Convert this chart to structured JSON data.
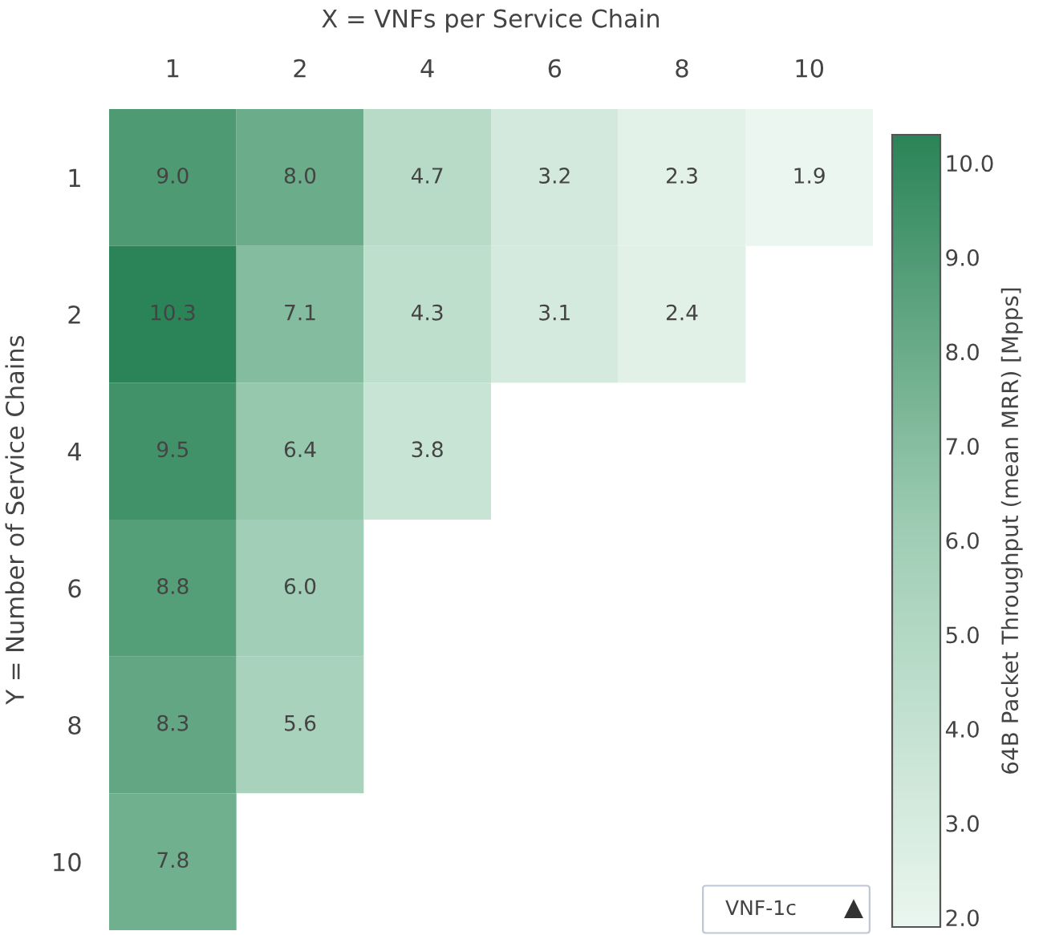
{
  "chart_data": {
    "type": "heatmap",
    "xlabel": "X = VNFs per Service Chain",
    "ylabel": "Y = Number of Service Chains",
    "clabel": "64B Packet Throughput (mean MRR) [Mpps]",
    "categories": [
      "1",
      "2",
      "4",
      "6",
      "8",
      "10"
    ],
    "y_categories": [
      "1",
      "2",
      "4",
      "6",
      "8",
      "10"
    ],
    "cells": [
      [
        9.0,
        8.0,
        4.7,
        3.2,
        2.3,
        1.9
      ],
      [
        10.3,
        7.1,
        4.3,
        3.1,
        2.4,
        null
      ],
      [
        9.5,
        6.4,
        3.8,
        null,
        null,
        null
      ],
      [
        8.8,
        6.0,
        null,
        null,
        null,
        null
      ],
      [
        8.3,
        5.6,
        null,
        null,
        null,
        null
      ],
      [
        7.8,
        null,
        null,
        null,
        null,
        null
      ]
    ],
    "cell_labels": [
      [
        "9.0",
        "8.0",
        "4.7",
        "3.2",
        "2.3",
        "1.9"
      ],
      [
        "10.3",
        "7.1",
        "4.3",
        "3.1",
        "2.4",
        null
      ],
      [
        "9.5",
        "6.4",
        "3.8",
        null,
        null,
        null
      ],
      [
        "8.8",
        "6.0",
        null,
        null,
        null,
        null
      ],
      [
        "8.3",
        "5.6",
        null,
        null,
        null,
        null
      ],
      [
        "7.8",
        null,
        null,
        null,
        null,
        null
      ]
    ],
    "clim": [
      1.9,
      10.3
    ],
    "cticks": [
      {
        "value": 2,
        "label": "2.0"
      },
      {
        "value": 3,
        "label": "3.0"
      },
      {
        "value": 4,
        "label": "4.0"
      },
      {
        "value": 5,
        "label": "5.0"
      },
      {
        "value": 6,
        "label": "6.0"
      },
      {
        "value": 7,
        "label": "7.0"
      },
      {
        "value": 8,
        "label": "8.0"
      },
      {
        "value": 9,
        "label": "9.0"
      },
      {
        "value": 10,
        "label": "10.0"
      }
    ],
    "data_labels": true,
    "annotations": [
      "VNF-1c"
    ]
  }
}
